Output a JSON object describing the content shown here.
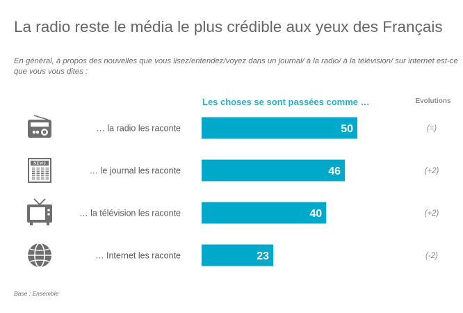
{
  "title": "La radio reste le média le plus crédible aux yeux des Français",
  "question": "En général, à propos des nouvelles que vous lisez/entendez/voyez dans un journal/ à la radio/ à la télévision/ sur internet est-ce que vous vous dites :",
  "base": "Base : Ensemble",
  "chart_data": {
    "type": "bar",
    "orientation": "horizontal",
    "title": "Les choses se sont passées comme …",
    "evolutions_header": "Evolutions",
    "categories": [
      "… la radio les raconte",
      "… le journal les raconte",
      "… la télévision les raconte",
      "… Internet les raconte"
    ],
    "values": [
      50,
      46,
      40,
      23
    ],
    "evolutions": [
      "(=)",
      "(+2)",
      "(+2)",
      "(-2)"
    ],
    "icons": [
      "radio-icon",
      "newspaper-icon",
      "television-icon",
      "globe-icon"
    ],
    "xlim": [
      0,
      100
    ],
    "grid": false,
    "bar_color": "#00a9c9",
    "icon_color": "#6e6e6e"
  }
}
